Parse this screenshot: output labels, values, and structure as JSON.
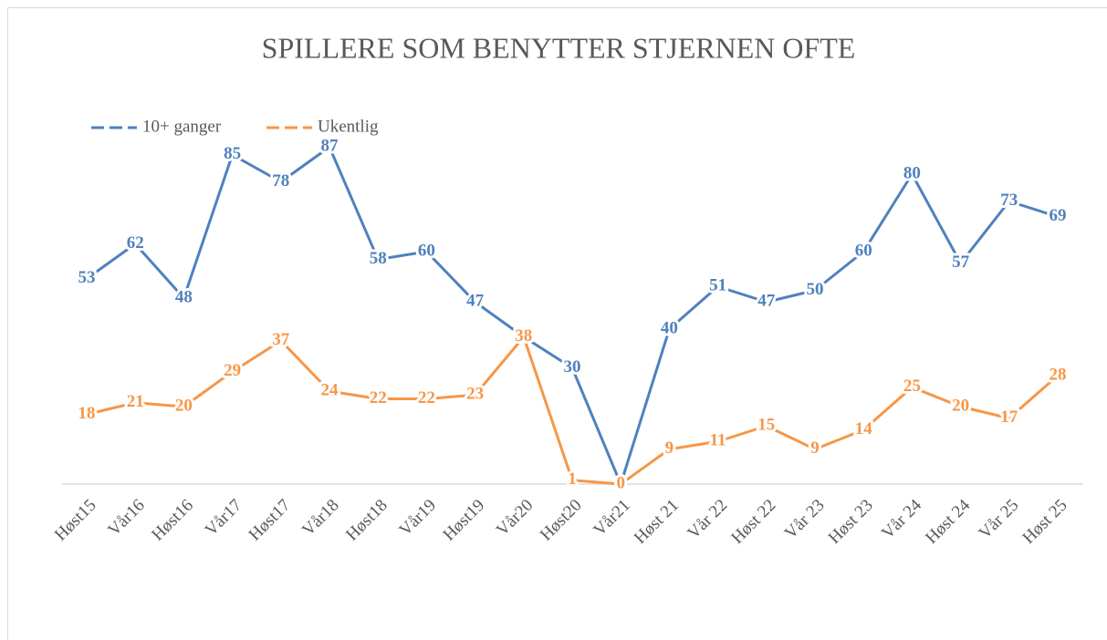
{
  "chart_data": {
    "type": "line",
    "title": "SPILLERE SOM BENYTTER STJERNEN OFTE",
    "categories": [
      "Høst15",
      "Vår16",
      "Høst16",
      "Vår17",
      "Høst17",
      "Vår18",
      "Høst18",
      "Vår19",
      "Høst19",
      "Vår20",
      "Høst20",
      "Vår21",
      "Høst 21",
      "Vår 22",
      "Høst 22",
      "Vår 23",
      "Høst 23",
      "Vår 24",
      "Høst 24",
      "Vår 25",
      "Høst 25"
    ],
    "series": [
      {
        "name": "10+ ganger",
        "color": "#4f81bd",
        "values": [
          53,
          62,
          48,
          85,
          78,
          87,
          58,
          60,
          47,
          38,
          30,
          0,
          40,
          51,
          47,
          50,
          60,
          80,
          57,
          73,
          69
        ]
      },
      {
        "name": "Ukentlig",
        "color": "#f79646",
        "values": [
          18,
          21,
          20,
          29,
          37,
          24,
          22,
          22,
          23,
          38,
          1,
          0,
          9,
          11,
          15,
          9,
          14,
          25,
          20,
          17,
          28
        ]
      }
    ],
    "legend": "top-left"
  }
}
